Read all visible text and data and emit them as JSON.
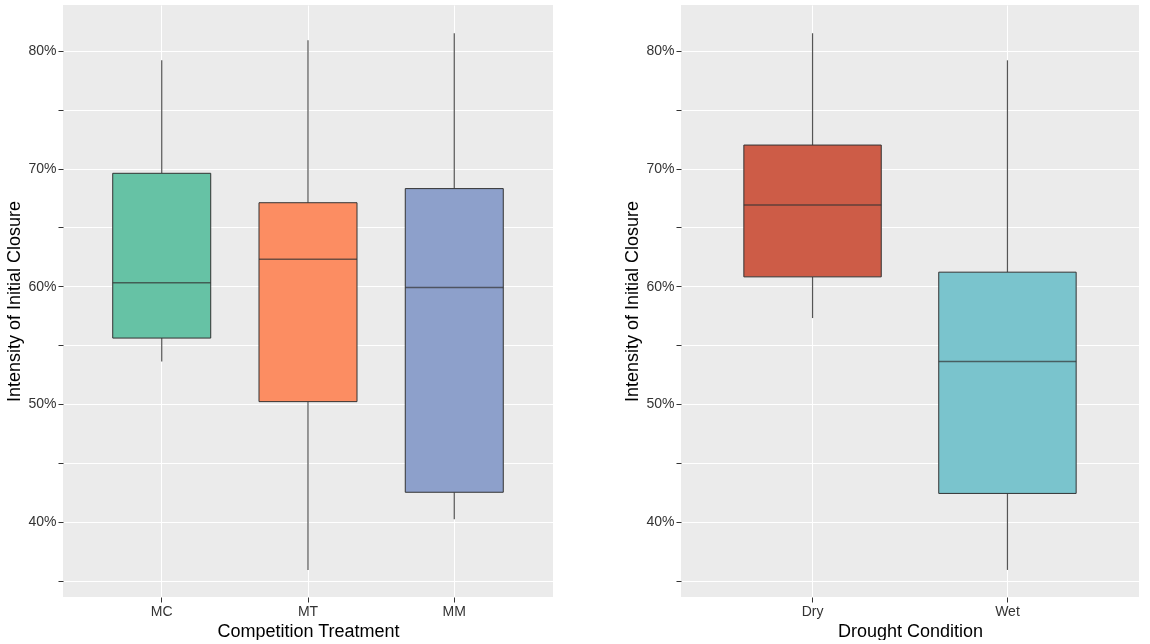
{
  "chart_data": [
    {
      "type": "box",
      "xlabel": "Competition Treatment",
      "ylabel": "Intensity of Initial Closure",
      "categories": [
        "MC",
        "MT",
        "MM"
      ],
      "colors": [
        "#66c2a5",
        "#fc8d62",
        "#8da0cb"
      ],
      "boxes": [
        {
          "low": 53.6,
          "q1": 55.6,
          "median": 60.3,
          "q3": 69.6,
          "high": 79.2
        },
        {
          "low": 35.9,
          "q1": 50.2,
          "median": 62.3,
          "q3": 67.1,
          "high": 80.9
        },
        {
          "low": 40.2,
          "q1": 42.5,
          "median": 59.9,
          "q3": 68.3,
          "high": 81.5
        }
      ],
      "ylim": [
        33.6,
        83.9
      ],
      "yticks": [
        {
          "value": 35,
          "label": null
        },
        {
          "value": 40,
          "label": "40%"
        },
        {
          "value": 45,
          "label": null
        },
        {
          "value": 50,
          "label": "50%"
        },
        {
          "value": 55,
          "label": null
        },
        {
          "value": 60,
          "label": "60%"
        },
        {
          "value": 65,
          "label": null
        },
        {
          "value": 70,
          "label": "70%"
        },
        {
          "value": 75,
          "label": null
        },
        {
          "value": 80,
          "label": "80%"
        }
      ],
      "grid": true
    },
    {
      "type": "box",
      "xlabel": "Drought Condition",
      "ylabel": "Intensity of Initial Closure",
      "categories": [
        "Dry",
        "Wet"
      ],
      "colors": [
        "#cd5c47",
        "#7ac4cd"
      ],
      "boxes": [
        {
          "low": 57.3,
          "q1": 60.8,
          "median": 66.9,
          "q3": 72.0,
          "high": 81.5
        },
        {
          "low": 35.9,
          "q1": 42.4,
          "median": 53.6,
          "q3": 61.2,
          "high": 79.2
        }
      ],
      "ylim": [
        33.6,
        83.9
      ],
      "yticks": [
        {
          "value": 35,
          "label": null
        },
        {
          "value": 40,
          "label": "40%"
        },
        {
          "value": 45,
          "label": null
        },
        {
          "value": 50,
          "label": "50%"
        },
        {
          "value": 55,
          "label": null
        },
        {
          "value": 60,
          "label": "60%"
        },
        {
          "value": 65,
          "label": null
        },
        {
          "value": 70,
          "label": "70%"
        },
        {
          "value": 75,
          "label": null
        },
        {
          "value": 80,
          "label": "80%"
        }
      ],
      "grid": true
    }
  ]
}
